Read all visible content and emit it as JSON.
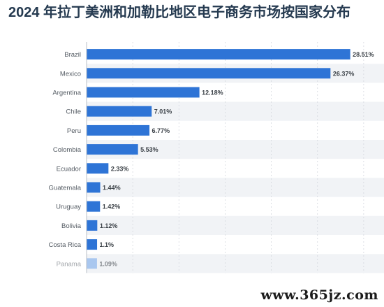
{
  "title": "2024 年拉丁美洲和加勒比地区电子商务市场按国家分布",
  "watermark": "www.365jz.com",
  "colors": {
    "bar": "#2e74d6",
    "band": "#f1f3f6",
    "grid": "#d4d8de",
    "faded_bar": "#a9c7ef"
  },
  "chart_data": {
    "type": "bar",
    "orientation": "horizontal",
    "title": "2024 年拉丁美洲和加勒比地区电子商务市场按国家分布",
    "categories": [
      "Brazil",
      "Mexico",
      "Argentina",
      "Chile",
      "Peru",
      "Colombia",
      "Ecuador",
      "Guatemala",
      "Uruguay",
      "Bolivia",
      "Costa Rica",
      "Panama"
    ],
    "values": [
      28.51,
      26.37,
      12.18,
      7.01,
      6.77,
      5.53,
      2.33,
      1.44,
      1.42,
      1.12,
      1.1,
      1.09
    ],
    "value_labels": [
      "28.51%",
      "26.37%",
      "12.18%",
      "7.01%",
      "6.77%",
      "5.53%",
      "2.33%",
      "1.44%",
      "1.42%",
      "1.12%",
      "1.1%",
      "1.09%"
    ],
    "xlim": [
      0,
      30
    ],
    "unit": "%",
    "grid": true
  }
}
